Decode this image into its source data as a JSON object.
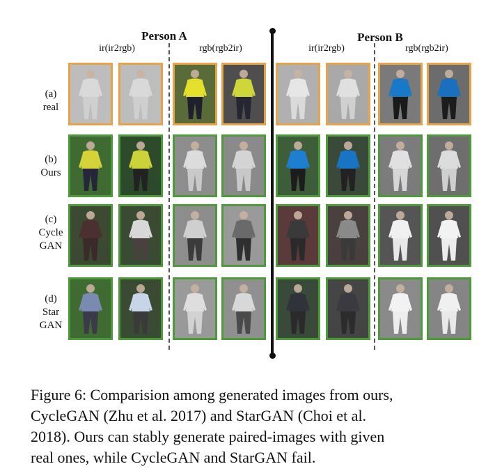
{
  "persons": [
    {
      "title": "Person A",
      "col_labels": [
        "ir(ir2rgb)",
        "rgb(rgb2ir)"
      ]
    },
    {
      "title": "Person B",
      "col_labels": [
        "ir(ir2rgb)",
        "rgb(rgb2ir)"
      ]
    }
  ],
  "rows": [
    {
      "letter": "(a)",
      "name": [
        "real"
      ]
    },
    {
      "letter": "(b)",
      "name": [
        "Ours"
      ]
    },
    {
      "letter": "(c)",
      "name": [
        "Cycle",
        "GAN"
      ]
    },
    {
      "letter": "(d)",
      "name": [
        "Star",
        "GAN"
      ]
    }
  ],
  "border_colors": {
    "real": "#e8a24a",
    "generated": "#4d9a3a"
  },
  "caption_lines": [
    "Figure 6: Comparision among generated images from ours,",
    "CycleGAN (Zhu et al. 2017) and StarGAN (Choi et al.",
    "2018). Ours can stably generate paired-images with given",
    "real ones, while CycleGAN and StarGAN fail."
  ]
}
